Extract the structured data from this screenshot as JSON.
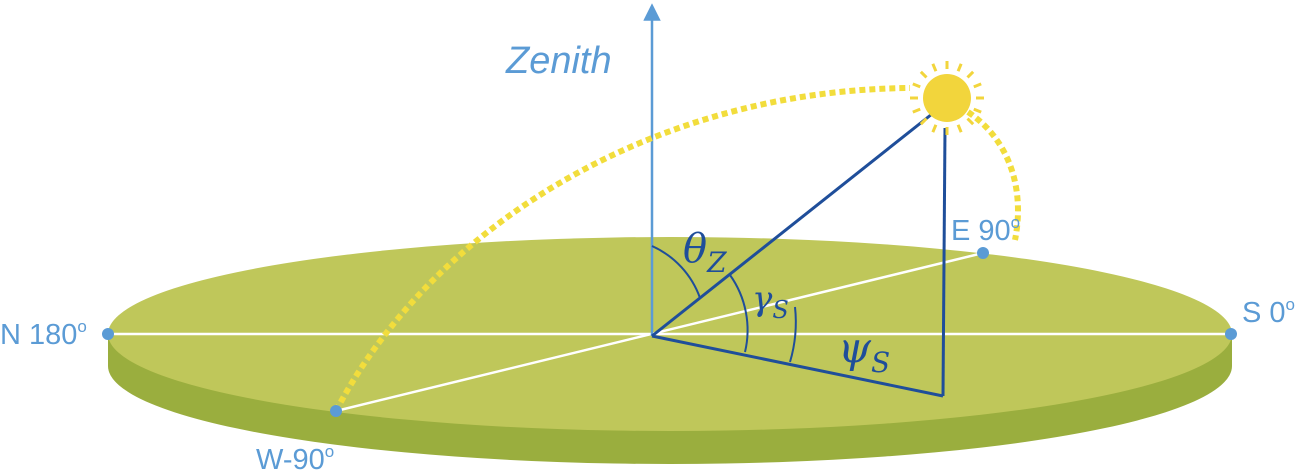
{
  "zenith_label": "Zenith",
  "directions": {
    "north": {
      "text": "N 180",
      "sup": "o"
    },
    "south": {
      "text": "S 0",
      "sup": "o"
    },
    "east": {
      "text": "E 90",
      "sup": "o"
    },
    "west": {
      "text": "W-90",
      "sup": "o"
    }
  },
  "angles": {
    "zenith": {
      "symbol": "θ",
      "subscript": "Z"
    },
    "altitude": {
      "symbol": "γ",
      "subscript": "S"
    },
    "azimuth": {
      "symbol": "ψ",
      "subscript": "S"
    }
  },
  "colors": {
    "ground_top": "#BFC75A",
    "ground_side": "#9AAE3E",
    "axis_blue": "#5B9BD5",
    "sun_lines": "#1F4E9A",
    "sun": "#F2D53C",
    "sun_path": "#F2DD3C",
    "horizon_lines": "#FFFFFF"
  }
}
